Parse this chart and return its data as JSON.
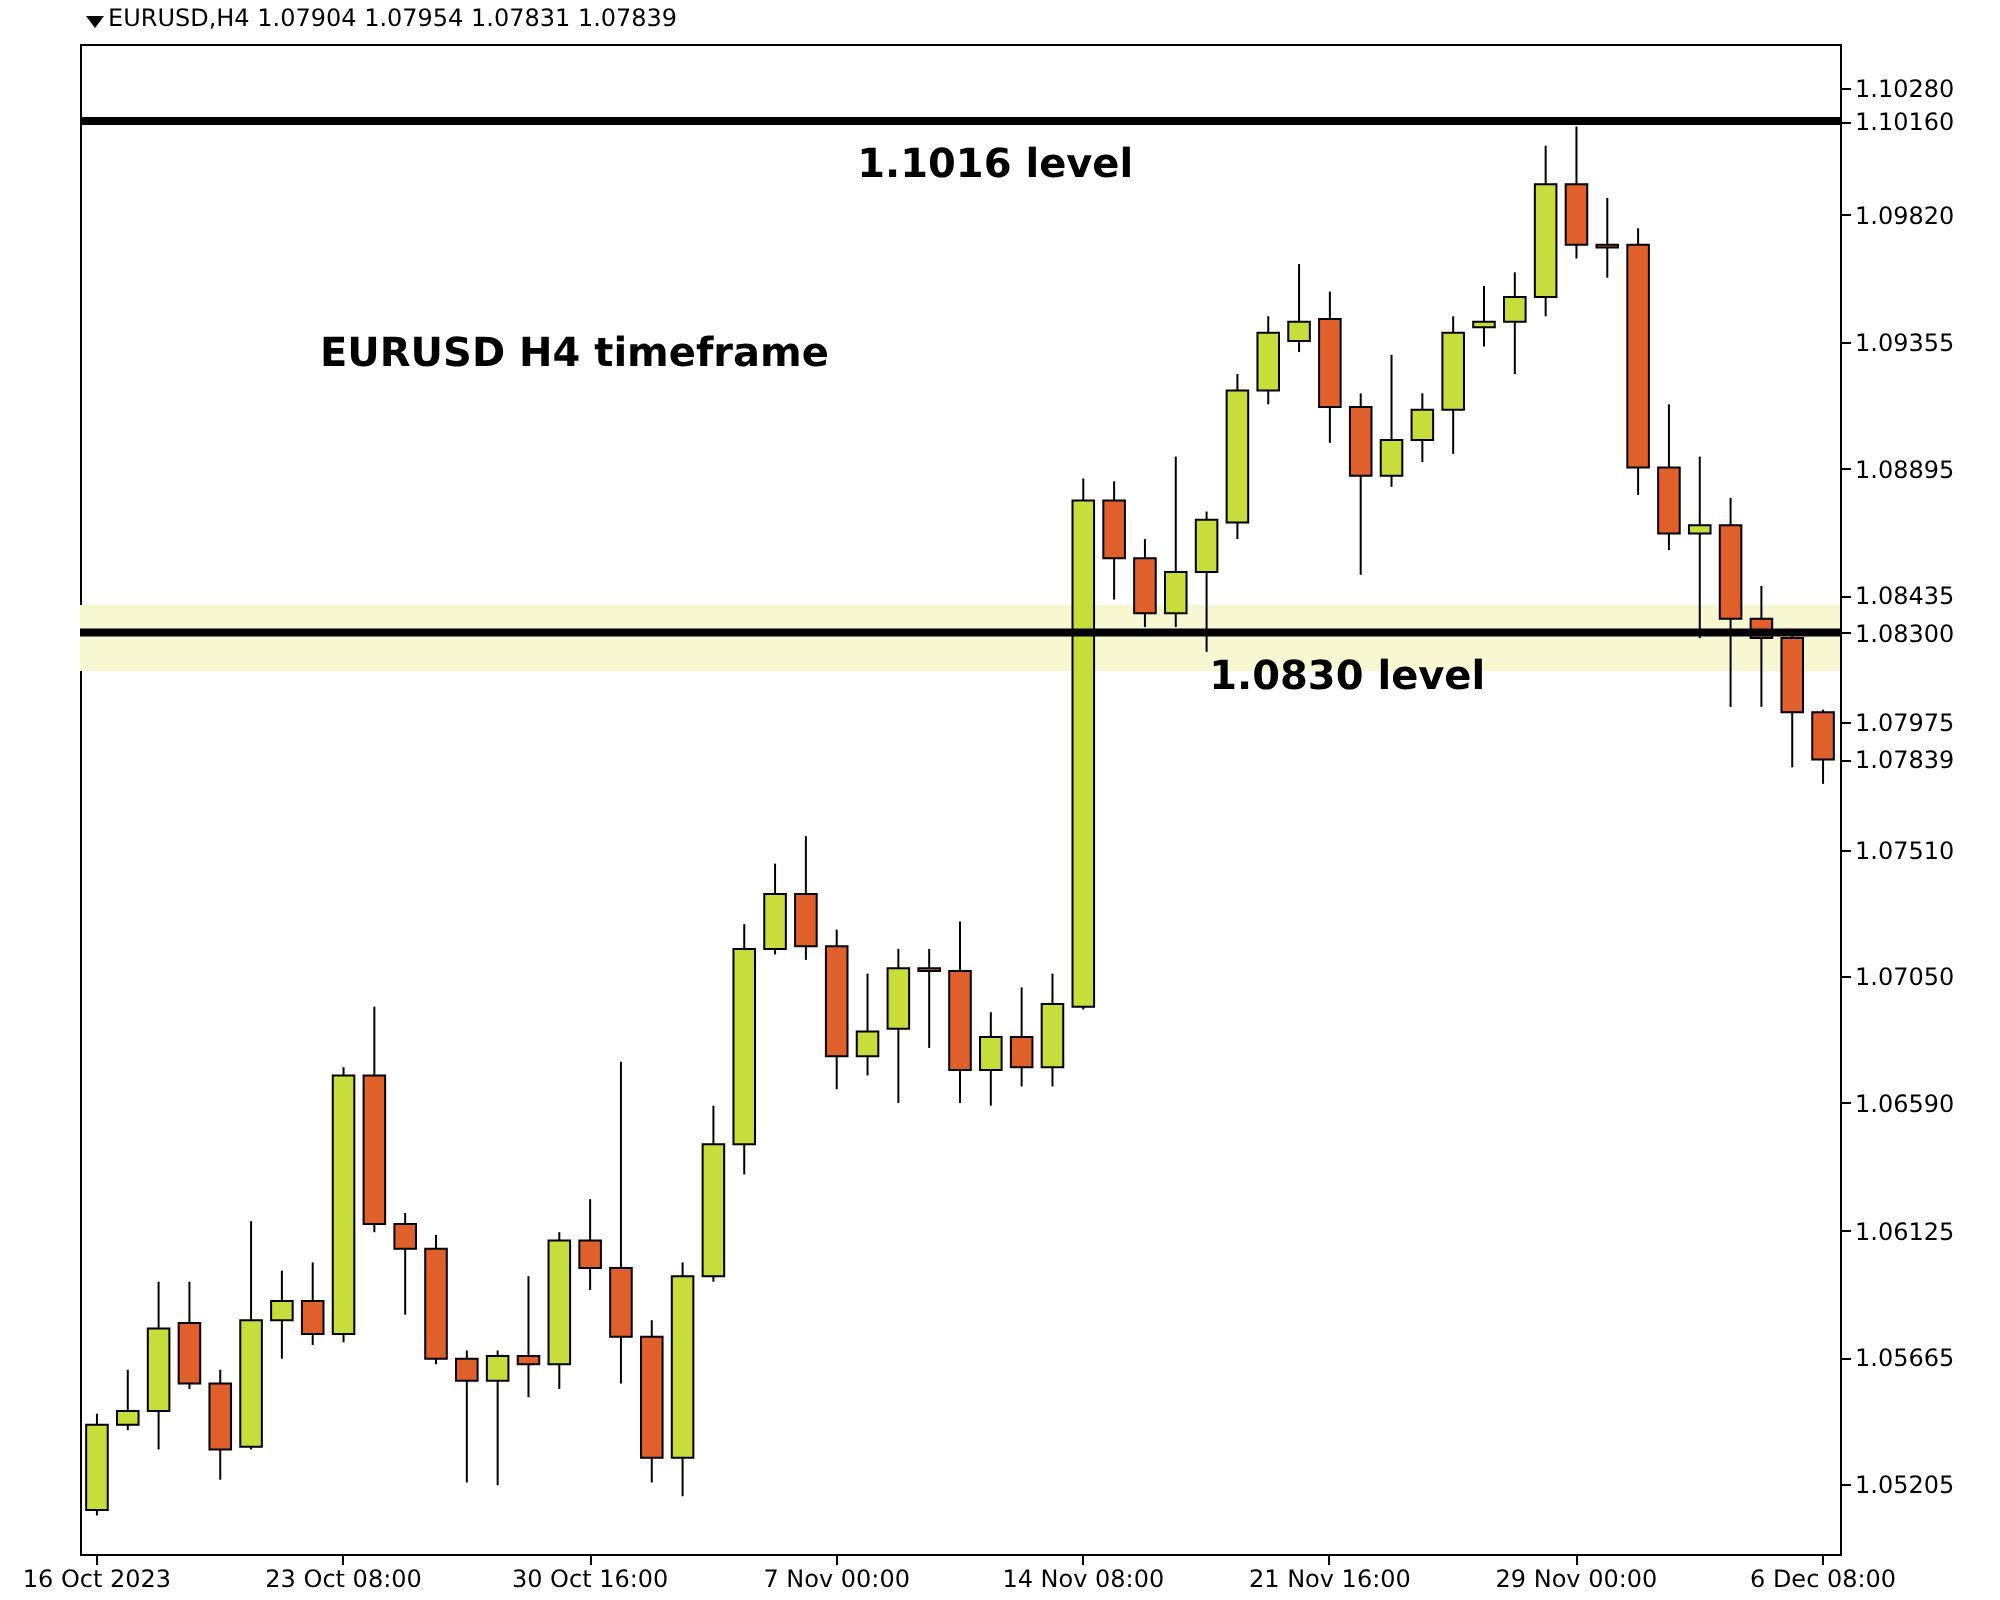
{
  "chart_data": {
    "type": "candlestick",
    "title": "EURUSD,H4  1.07904 1.07954 1.07831 1.07839",
    "categories": [
      "16 Oct 2023",
      null,
      null,
      null,
      null,
      null,
      null,
      null,
      "23 Oct 08:00",
      null,
      null,
      null,
      null,
      null,
      null,
      null,
      "30 Oct 16:00",
      null,
      null,
      null,
      null,
      null,
      null,
      null,
      "7 Nov 00:00",
      null,
      null,
      null,
      null,
      null,
      null,
      null,
      "14 Nov 08:00",
      null,
      null,
      null,
      null,
      null,
      null,
      null,
      "21 Nov 16:00",
      null,
      null,
      null,
      null,
      null,
      null,
      null,
      "29 Nov 00:00",
      null,
      null,
      null,
      null,
      null,
      null,
      null,
      "6 Dec 08:00"
    ],
    "ohlc": [
      [
        1.0511,
        1.0546,
        1.0509,
        1.0542
      ],
      [
        1.0542,
        1.0562,
        1.054,
        1.0547
      ],
      [
        1.0547,
        1.0594,
        1.0533,
        1.0577
      ],
      [
        1.0579,
        1.0594,
        1.0555,
        1.0557
      ],
      [
        1.0557,
        1.0562,
        1.0522,
        1.0533
      ],
      [
        1.0534,
        1.0616,
        1.0533,
        1.058
      ],
      [
        1.058,
        1.0598,
        1.0566,
        1.0587
      ],
      [
        1.0587,
        1.0601,
        1.0571,
        1.0575
      ],
      [
        1.0575,
        1.0672,
        1.0572,
        1.0669
      ],
      [
        1.0669,
        1.0694,
        1.0612,
        1.0615
      ],
      [
        1.0615,
        1.0619,
        1.0582,
        1.0606
      ],
      [
        1.0606,
        1.0611,
        1.0564,
        1.0566
      ],
      [
        1.0566,
        1.0569,
        1.0521,
        1.0558
      ],
      [
        1.0558,
        1.0569,
        1.052,
        1.0567
      ],
      [
        1.0567,
        1.0596,
        1.0552,
        1.0564
      ],
      [
        1.0564,
        1.0612,
        1.0555,
        1.0609
      ],
      [
        1.0609,
        1.0624,
        1.0591,
        1.0599
      ],
      [
        1.0599,
        1.0674,
        1.0557,
        1.0574
      ],
      [
        1.0574,
        1.058,
        1.0521,
        1.053
      ],
      [
        1.053,
        1.0601,
        1.0516,
        1.0596
      ],
      [
        1.0596,
        1.0658,
        1.0594,
        1.0644
      ],
      [
        1.0644,
        1.0724,
        1.0633,
        1.0715
      ],
      [
        1.0715,
        1.0746,
        1.0713,
        1.0735
      ],
      [
        1.0735,
        1.0756,
        1.0711,
        1.0716
      ],
      [
        1.0716,
        1.0722,
        1.0664,
        1.0676
      ],
      [
        1.0676,
        1.0706,
        1.0669,
        1.0685
      ],
      [
        1.0686,
        1.0715,
        1.0659,
        1.0708
      ],
      [
        1.0708,
        1.0715,
        1.0679,
        1.0707
      ],
      [
        1.0707,
        1.0725,
        1.0659,
        1.0671
      ],
      [
        1.0671,
        1.0692,
        1.0658,
        1.0683
      ],
      [
        1.0683,
        1.0701,
        1.0665,
        1.0672
      ],
      [
        1.0672,
        1.0706,
        1.0665,
        1.0695
      ],
      [
        1.0694,
        1.0886,
        1.0693,
        1.0878
      ],
      [
        1.0878,
        1.0885,
        1.0842,
        1.0857
      ],
      [
        1.0857,
        1.0864,
        1.0832,
        1.0837
      ],
      [
        1.0837,
        1.0894,
        1.0832,
        1.0852
      ],
      [
        1.0852,
        1.0874,
        1.0823,
        1.0871
      ],
      [
        1.087,
        1.0924,
        1.0864,
        1.0918
      ],
      [
        1.0918,
        1.0945,
        1.0913,
        1.0939
      ],
      [
        1.0936,
        1.0964,
        1.0932,
        1.0943
      ],
      [
        1.0944,
        1.0954,
        1.0899,
        1.0912
      ],
      [
        1.0912,
        1.0917,
        1.0851,
        1.0887
      ],
      [
        1.0887,
        1.0931,
        1.0883,
        1.09
      ],
      [
        1.09,
        1.0917,
        1.0892,
        1.0911
      ],
      [
        1.0911,
        1.0945,
        1.0895,
        1.0939
      ],
      [
        1.0941,
        1.0956,
        1.0934,
        1.0943
      ],
      [
        1.0943,
        1.0961,
        1.0924,
        1.0952
      ],
      [
        1.0952,
        1.1007,
        1.0945,
        1.0993
      ],
      [
        1.0993,
        1.1014,
        1.0966,
        1.0971
      ],
      [
        1.0971,
        1.0988,
        1.0959,
        1.097
      ],
      [
        1.0971,
        1.0977,
        1.088,
        1.089
      ],
      [
        1.089,
        1.0913,
        1.086,
        1.0866
      ],
      [
        1.0866,
        1.0894,
        1.0828,
        1.0869
      ],
      [
        1.0869,
        1.0879,
        1.0803,
        1.0835
      ],
      [
        1.0835,
        1.0847,
        1.0803,
        1.0828
      ],
      [
        1.0828,
        1.083,
        1.0781,
        1.0801
      ],
      [
        1.0801,
        1.0802,
        1.0775,
        1.07839
      ]
    ],
    "colors": [
      "#c8dc3c",
      "#c8dc3c",
      "#c8dc3c",
      "#e0602c",
      "#e0602c",
      "#c8dc3c",
      "#c8dc3c",
      "#e0602c",
      "#c8dc3c",
      "#e0602c",
      "#e0602c",
      "#e0602c",
      "#e0602c",
      "#c8dc3c",
      "#e0602c",
      "#c8dc3c",
      "#e0602c",
      "#e0602c",
      "#e0602c",
      "#c8dc3c",
      "#c8dc3c",
      "#c8dc3c",
      "#c8dc3c",
      "#e0602c",
      "#e0602c",
      "#c8dc3c",
      "#c8dc3c",
      "#e0602c",
      "#e0602c",
      "#c8dc3c",
      "#e0602c",
      "#c8dc3c",
      "#c8dc3c",
      "#e0602c",
      "#e0602c",
      "#c8dc3c",
      "#c8dc3c",
      "#c8dc3c",
      "#c8dc3c",
      "#c8dc3c",
      "#e0602c",
      "#e0602c",
      "#c8dc3c",
      "#c8dc3c",
      "#c8dc3c",
      "#c8dc3c",
      "#c8dc3c",
      "#c8dc3c",
      "#e0602c",
      "#e0602c",
      "#e0602c",
      "#e0602c",
      "#c8dc3c",
      "#e0602c",
      "#e0602c",
      "#e0602c",
      "#e0602c"
    ],
    "ylim": [
      1.0495,
      1.1044
    ],
    "yticks": [
      {
        "value": 1.1028,
        "label": "1.10280"
      },
      {
        "value": 1.1016,
        "label": "1.10160"
      },
      {
        "value": 1.0982,
        "label": "1.09820"
      },
      {
        "value": 1.09355,
        "label": "1.09355"
      },
      {
        "value": 1.08895,
        "label": "1.08895"
      },
      {
        "value": 1.08435,
        "label": "1.08435"
      },
      {
        "value": 1.083,
        "label": "1.08300"
      },
      {
        "value": 1.07975,
        "label": "1.07975"
      },
      {
        "value": 1.07839,
        "label": "1.07839"
      },
      {
        "value": 1.0751,
        "label": "1.07510"
      },
      {
        "value": 1.0705,
        "label": "1.07050"
      },
      {
        "value": 1.0659,
        "label": "1.06590"
      },
      {
        "value": 1.06125,
        "label": "1.06125"
      },
      {
        "value": 1.05665,
        "label": "1.05665"
      },
      {
        "value": 1.05205,
        "label": "1.05205"
      }
    ],
    "ref_lines": [
      {
        "axis": "y",
        "value": 1.1016,
        "label": "1.1016 level",
        "color": "#000000"
      },
      {
        "axis": "y",
        "value": 1.083,
        "label": "1.0830 level",
        "color": "#000000"
      }
    ],
    "bands": [
      {
        "axis": "y",
        "from": 1.0816,
        "to": 1.084,
        "color": "#f7f7d2"
      }
    ],
    "annotations": [
      "EURUSD H4 timeframe"
    ],
    "grid": false
  }
}
